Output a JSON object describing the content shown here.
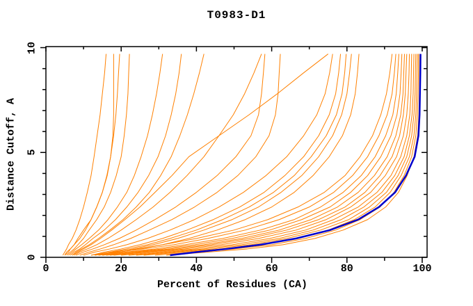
{
  "colors": {
    "model_orange": "#ff8000",
    "best_blue": "#0000cc",
    "frame": "#000000",
    "background": "#ffffff"
  },
  "chart_data": {
    "type": "line",
    "title": "T0983-D1",
    "xlabel": "Percent of Residues (CA)",
    "ylabel": "Distance Cutoff, A",
    "xlim": [
      0,
      101.3
    ],
    "ylim": [
      0,
      10.05
    ],
    "x_major_ticks": [
      0,
      20,
      40,
      60,
      80,
      100
    ],
    "x_minor_ticks": [
      10,
      30,
      50,
      70,
      90
    ],
    "y_major_ticks": [
      0,
      5,
      10
    ],
    "y_minor_ticks": [
      1,
      2,
      3,
      4,
      6,
      7,
      8,
      9
    ],
    "grid": false,
    "legend": null,
    "cutoff_levels": [
      0.1,
      0.25,
      0.4,
      0.6,
      0.9,
      1.3,
      1.8,
      2.4,
      3.1,
      3.9,
      4.8,
      5.8,
      6.8,
      7.8,
      8.8,
      9.7
    ],
    "series": [
      {
        "color": "orange",
        "percent": [
          4.5,
          5,
          5.5,
          6,
          7,
          8,
          9,
          10,
          11,
          12,
          12.8,
          13.6,
          14.4,
          15,
          15.6,
          16
        ]
      },
      {
        "color": "orange",
        "percent": [
          5,
          5.5,
          6.5,
          7.5,
          8.5,
          10,
          12,
          13.5,
          15,
          16.3,
          17.2,
          17.8,
          18,
          18,
          18,
          18
        ]
      },
      {
        "color": "orange",
        "percent": [
          5,
          6,
          6.5,
          7.5,
          9,
          10.5,
          12,
          13.5,
          15,
          16.2,
          17.2,
          18,
          18.6,
          19,
          19.3,
          19.6
        ]
      },
      {
        "color": "orange",
        "percent": [
          5.5,
          6.5,
          7.5,
          8.5,
          10,
          11.5,
          13.5,
          15.5,
          17.2,
          18.7,
          20,
          20.8,
          21.4,
          21.8,
          22,
          22.2
        ]
      },
      {
        "color": "orange",
        "percent": [
          6,
          7,
          8,
          9.5,
          11.5,
          14,
          16.5,
          19,
          21.5,
          23.5,
          25.3,
          27,
          28.3,
          29.4,
          30.3,
          31
        ]
      },
      {
        "color": "orange",
        "percent": [
          6.5,
          7.5,
          9,
          10.5,
          12.5,
          15.5,
          18.5,
          21.5,
          24.5,
          27.3,
          29.8,
          31.8,
          33.3,
          34.5,
          35.4,
          36
        ]
      },
      {
        "color": "orange",
        "percent": [
          7,
          8,
          9.5,
          11.5,
          14,
          17,
          20.5,
          24,
          27.5,
          30.5,
          33.3,
          35.6,
          37.6,
          39.3,
          40.8,
          42
        ]
      },
      {
        "color": "orange",
        "percent": [
          7.5,
          9,
          11,
          13.5,
          16.5,
          20,
          24,
          28.5,
          33,
          37.5,
          42,
          46,
          49.8,
          52.8,
          55.3,
          57.3
        ]
      },
      {
        "color": "orange",
        "percent": [
          8,
          10,
          12.5,
          15.5,
          19.5,
          24,
          29,
          34.5,
          40,
          45.5,
          50.5,
          54.5,
          56.5,
          57.3,
          57.8,
          58.2
        ]
      },
      {
        "color": "orange",
        "percent": [
          9,
          11.5,
          14.5,
          18,
          22.5,
          27.5,
          33.5,
          39.5,
          45.5,
          51,
          55.8,
          59.3,
          61,
          61.7,
          62,
          62.3
        ]
      },
      {
        "color": "orange",
        "percent": [
          7,
          8.5,
          10,
          12,
          14.5,
          17.5,
          21,
          25,
          29,
          33.5,
          38,
          46,
          54,
          61.5,
          68.5,
          75
        ]
      },
      {
        "color": "orange",
        "percent": [
          10,
          13,
          17,
          21.5,
          27,
          33,
          39.5,
          46,
          52.5,
          58.5,
          64,
          68.5,
          72,
          74.2,
          75.4,
          76.2
        ]
      },
      {
        "color": "orange",
        "percent": [
          12,
          15.5,
          20,
          25,
          31,
          37.5,
          44.5,
          51.5,
          58,
          63.5,
          68.5,
          72.5,
          75.3,
          77,
          77.8,
          78.3
        ]
      },
      {
        "color": "orange",
        "percent": [
          13,
          17,
          21.5,
          27,
          33,
          40,
          47,
          54,
          60.5,
          66,
          70.5,
          74.5,
          77.2,
          78.7,
          79.4,
          79.8
        ]
      },
      {
        "color": "orange",
        "percent": [
          14,
          18,
          23,
          28.5,
          35,
          42,
          49.5,
          56.5,
          62.5,
          68,
          72.5,
          76.2,
          78.6,
          80,
          80.7,
          81.2
        ]
      },
      {
        "color": "orange",
        "percent": [
          15,
          19.5,
          25,
          31,
          38,
          45.5,
          53,
          60,
          66,
          71,
          75.3,
          78.8,
          81,
          82.2,
          82.8,
          83.2
        ]
      },
      {
        "color": "orange",
        "percent": [
          12,
          17,
          24,
          31,
          40,
          50,
          59,
          67,
          74,
          79.5,
          83.5,
          86.8,
          89,
          90.5,
          91.4,
          92
        ]
      },
      {
        "color": "orange",
        "percent": [
          13,
          19,
          26,
          34,
          43,
          53,
          62,
          70,
          76.5,
          81.5,
          85.5,
          88.5,
          90.7,
          92,
          92.6,
          93
        ]
      },
      {
        "color": "orange",
        "percent": [
          14,
          21,
          29,
          37,
          47,
          57,
          66,
          73,
          79,
          83.8,
          87.5,
          90.3,
          92.2,
          93.1,
          93.5,
          93.8
        ]
      },
      {
        "color": "orange",
        "percent": [
          15,
          22,
          31,
          39.5,
          49.5,
          59.5,
          68,
          75.5,
          81,
          85.5,
          89,
          91.7,
          93.3,
          94.1,
          94.4,
          94.6
        ]
      },
      {
        "color": "orange",
        "percent": [
          16,
          24,
          33,
          42,
          52,
          62,
          70.5,
          77.5,
          83,
          87.3,
          90.7,
          93,
          94.3,
          94.9,
          95.1,
          95.3
        ]
      },
      {
        "color": "orange",
        "percent": [
          17,
          25.5,
          35,
          44,
          54,
          64,
          72.5,
          79.5,
          84.8,
          88.8,
          92,
          94,
          95,
          95.5,
          95.7,
          95.9
        ]
      },
      {
        "color": "orange",
        "percent": [
          18,
          27,
          37,
          46.5,
          56.5,
          66.5,
          74.5,
          81,
          86.3,
          90.2,
          93.2,
          95,
          95.9,
          96.3,
          96.5,
          96.6
        ]
      },
      {
        "color": "orange",
        "percent": [
          20,
          29.5,
          39.5,
          49.5,
          59.5,
          69,
          76.5,
          83,
          88,
          91.7,
          94.3,
          95.9,
          96.7,
          97,
          97.1,
          97.2
        ]
      },
      {
        "color": "orange",
        "percent": [
          22,
          32,
          42,
          52,
          62,
          71,
          78.5,
          84.5,
          89.3,
          92.7,
          95.2,
          96.6,
          97.3,
          97.6,
          97.7,
          97.8
        ]
      },
      {
        "color": "orange",
        "percent": [
          24,
          34,
          44.5,
          54.5,
          64,
          73,
          80.5,
          86,
          90.5,
          93.6,
          95.9,
          97.2,
          97.8,
          98.1,
          98.2,
          98.3
        ]
      },
      {
        "color": "orange",
        "percent": [
          26,
          36.5,
          47,
          57,
          66.5,
          75,
          82,
          87.5,
          91.5,
          94.4,
          96.6,
          97.8,
          98.3,
          98.5,
          98.6,
          98.7
        ]
      },
      {
        "color": "orange",
        "percent": [
          29,
          39.5,
          50,
          60,
          69,
          77,
          83.5,
          88.8,
          92.5,
          95.2,
          97.2,
          98.3,
          98.7,
          98.9,
          99,
          99
        ]
      },
      {
        "color": "orange",
        "percent": [
          32,
          43,
          53.5,
          63,
          71.5,
          79,
          85.5,
          90.3,
          93.7,
          96,
          97.8,
          98.8,
          99.1,
          99.25,
          99.3,
          99.35
        ]
      },
      {
        "color": "blue",
        "percent": [
          33,
          40,
          48,
          57,
          66.5,
          75.5,
          83,
          88.5,
          92.8,
          95.7,
          98,
          99,
          99.3,
          99.4,
          99.5,
          99.55
        ]
      }
    ]
  }
}
